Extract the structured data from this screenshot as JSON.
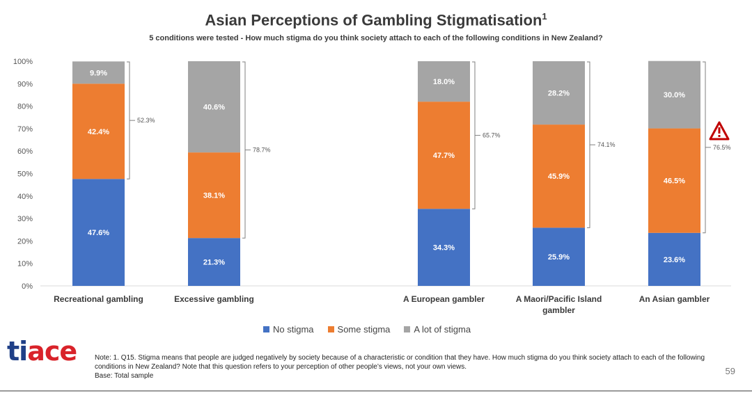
{
  "title": "Asian Perceptions of Gambling Stigmatisation",
  "title_sup": "1",
  "subtitle": "5 conditions were tested - How much stigma do you think society attach to each of the following conditions in New Zealand?",
  "chart_data": {
    "type": "bar",
    "stacked": true,
    "categories": [
      "Recreational gambling",
      "Excessive gambling",
      "A European gambler",
      "A Maori/Pacific Island gambler",
      "An Asian gambler"
    ],
    "series": [
      {
        "name": "No stigma",
        "color": "#4472c4",
        "values": [
          47.6,
          21.3,
          34.3,
          25.9,
          23.6
        ]
      },
      {
        "name": "Some stigma",
        "color": "#ed7d31",
        "values": [
          42.4,
          38.1,
          47.7,
          45.9,
          46.5
        ]
      },
      {
        "name": "A lot of stigma",
        "color": "#a5a5a5",
        "values": [
          9.9,
          40.6,
          18.0,
          28.2,
          30.0
        ]
      }
    ],
    "bracket_totals": [
      "52.3%",
      "78.7%",
      "65.7%",
      "74.1%",
      "76.5%"
    ],
    "ylim": [
      0,
      100
    ],
    "yticks": [
      "0%",
      "10%",
      "20%",
      "30%",
      "40%",
      "50%",
      "60%",
      "70%",
      "80%",
      "90%",
      "100%"
    ],
    "legend_position": "bottom",
    "grid": false,
    "warning_icon_category": "An Asian gambler"
  },
  "logo": {
    "part1": "ti",
    "part2": "ace"
  },
  "note": {
    "line1": "Note: 1. Q15. Stigma means that people are judged negatively by society because of a characteristic or condition that they have. How much stigma do you think society attach to each of the following conditions in New Zealand? Note that this question refers to your perception of other people’s views, not your own views.",
    "line2": "Base: Total sample"
  },
  "page_number": "59"
}
